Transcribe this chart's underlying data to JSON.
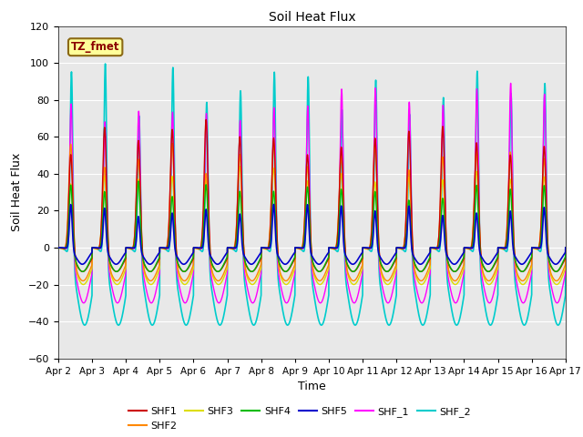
{
  "title": "Soil Heat Flux",
  "xlabel": "Time",
  "ylabel": "Soil Heat Flux",
  "ylim": [
    -60,
    120
  ],
  "yticks": [
    -60,
    -40,
    -20,
    0,
    20,
    40,
    60,
    80,
    100,
    120
  ],
  "x_labels": [
    "Apr 2",
    "Apr 3",
    "Apr 4",
    "Apr 5",
    "Apr 6",
    "Apr 7",
    "Apr 8",
    "Apr 9",
    "Apr 10",
    "Apr 11",
    "Apr 12",
    "Apr 13",
    "Apr 14",
    "Apr 15",
    "Apr 16",
    "Apr 17"
  ],
  "annotation_text": "TZ_fmet",
  "annotation_color": "#8B0000",
  "annotation_bg": "#FFFF99",
  "annotation_edge": "#8B6914",
  "background_color": "#E8E8E8",
  "series": {
    "SHF1": {
      "color": "#CC0000",
      "lw": 1.0
    },
    "SHF2": {
      "color": "#FF8800",
      "lw": 1.0
    },
    "SHF3": {
      "color": "#DDDD00",
      "lw": 1.0
    },
    "SHF4": {
      "color": "#00BB00",
      "lw": 1.0
    },
    "SHF5": {
      "color": "#0000CC",
      "lw": 1.2
    },
    "SHF_1": {
      "color": "#FF00FF",
      "lw": 1.0
    },
    "SHF_2": {
      "color": "#00CCCC",
      "lw": 1.2
    }
  },
  "plot_order": [
    "SHF_2",
    "SHF_1",
    "SHF3",
    "SHF2",
    "SHF1",
    "SHF4",
    "SHF5"
  ],
  "legend_order": [
    "SHF1",
    "SHF2",
    "SHF3",
    "SHF4",
    "SHF5",
    "SHF_1",
    "SHF_2"
  ],
  "n_days": 15,
  "samples_per_day": 288
}
